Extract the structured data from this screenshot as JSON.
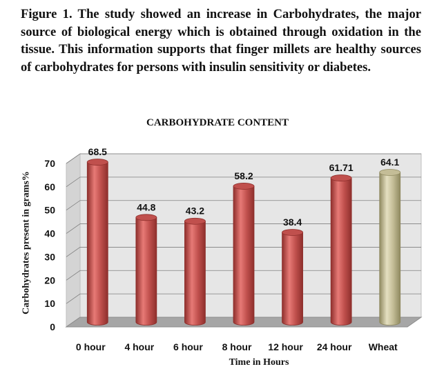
{
  "figure": {
    "caption": "Figure 1. The study showed an increase in Carbohydrates, the major source of biological energy which is obtained through oxidation in the tissue. This information supports that finger millets are healthy sources of carbohydrates for persons with insulin sensitivity or diabetes."
  },
  "chart_data": {
    "type": "bar",
    "title": "CARBOHYDRATE CONTENT",
    "xlabel": "Time in Hours",
    "ylabel": "Carbohydrates present in grams%",
    "categories": [
      "0 hour",
      "4 hour",
      "6 hour",
      "8 hour",
      "12 hour",
      "24 hour",
      "Wheat"
    ],
    "values": [
      68.5,
      44.8,
      43.2,
      58.2,
      38.4,
      61.71,
      64.1
    ],
    "data_labels": [
      "68.5",
      "44.8",
      "43.2",
      "58.2",
      "38.4",
      "61.71",
      "64.1"
    ],
    "ylim": [
      0,
      70
    ],
    "yticks": [
      0,
      10,
      20,
      30,
      40,
      50,
      60,
      70
    ],
    "grid": true,
    "legend": "none",
    "colors": {
      "bar": "#c0504d",
      "bar_highlight": "#e77a76",
      "bar_dark": "#8e2f2c",
      "wheat_bar": "#c4bd97",
      "wheat_highlight": "#e4dfc0",
      "wheat_dark": "#8f8960",
      "wall": "#e6e6e6",
      "floor": "#a6a6a6",
      "grid": "#7f7f7f"
    }
  }
}
